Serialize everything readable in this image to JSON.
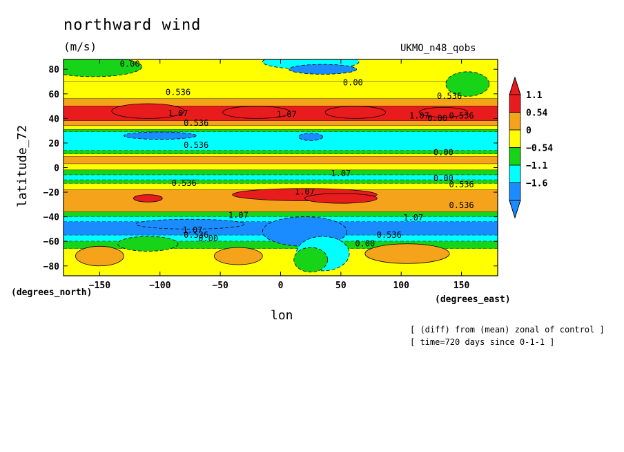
{
  "chart_data": {
    "type": "heatmap",
    "title": "northward wind",
    "units": "(m/s)",
    "model": "UKMO_n48_qobs",
    "xlabel": "lon",
    "ylabel": "latitude_72",
    "x_units": "(degrees_east)",
    "y_units": "(degrees_north)",
    "notes": [
      "[ (diff) from (mean) zonal of control ]",
      "[ time=720 days since 0-1-1 ]"
    ],
    "xlim": [
      -180,
      180
    ],
    "ylim": [
      -88,
      88
    ],
    "x_ticks": [
      -150,
      -100,
      -50,
      0,
      50,
      100,
      150
    ],
    "y_ticks": [
      80,
      60,
      40,
      20,
      0,
      -20,
      -40,
      -60,
      -80
    ],
    "colorbar": {
      "labels": [
        "1.1",
        "0.54",
        "0",
        "-0.54",
        "-1.1",
        "-1.6"
      ],
      "colors": [
        "#e81c1c",
        "#f5a31a",
        "#ffff00",
        "#18d418",
        "#00ffff",
        "#1a8cff"
      ]
    },
    "bands": [
      {
        "lat_top": 88,
        "lat_bottom": 70,
        "level": 2
      },
      {
        "lat_top": 70,
        "lat_bottom": 56,
        "level": 2
      },
      {
        "lat_top": 56,
        "lat_bottom": 50,
        "level": 1
      },
      {
        "lat_top": 50,
        "lat_bottom": 38,
        "level": 0
      },
      {
        "lat_top": 38,
        "lat_bottom": 34,
        "level": 1
      },
      {
        "lat_top": 34,
        "lat_bottom": 31,
        "level": 2
      },
      {
        "lat_top": 31,
        "lat_bottom": 29,
        "level": 3
      },
      {
        "lat_top": 29,
        "lat_bottom": 14,
        "level": 4
      },
      {
        "lat_top": 14,
        "lat_bottom": 11,
        "level": 3
      },
      {
        "lat_top": 11,
        "lat_bottom": 9,
        "level": 2
      },
      {
        "lat_top": 9,
        "lat_bottom": 3,
        "level": 1
      },
      {
        "lat_top": 3,
        "lat_bottom": -2,
        "level": 2
      },
      {
        "lat_top": -2,
        "lat_bottom": -6,
        "level": 3
      },
      {
        "lat_top": -6,
        "lat_bottom": -10,
        "level": 4
      },
      {
        "lat_top": -10,
        "lat_bottom": -13,
        "level": 3
      },
      {
        "lat_top": -13,
        "lat_bottom": -18,
        "level": 2
      },
      {
        "lat_top": -18,
        "lat_bottom": -36,
        "level": 1
      },
      {
        "lat_top": -36,
        "lat_bottom": -40,
        "level": 3
      },
      {
        "lat_top": -40,
        "lat_bottom": -44,
        "level": 4
      },
      {
        "lat_top": -44,
        "lat_bottom": -55,
        "level": 5
      },
      {
        "lat_top": -55,
        "lat_bottom": -60,
        "level": 4
      },
      {
        "lat_top": -60,
        "lat_bottom": -66,
        "level": 3
      },
      {
        "lat_top": -66,
        "lat_bottom": -88,
        "level": 2
      }
    ],
    "blobs": [
      {
        "lon": -110,
        "lat": 46,
        "rx": 30,
        "ry": 6,
        "level": 0
      },
      {
        "lon": -20,
        "lat": 45,
        "rx": 28,
        "ry": 5,
        "level": 0
      },
      {
        "lon": 62,
        "lat": 45,
        "rx": 25,
        "ry": 5,
        "level": 0
      },
      {
        "lon": 135,
        "lat": 45,
        "rx": 20,
        "ry": 4,
        "level": 0
      },
      {
        "lon": 25,
        "lat": 86,
        "rx": 40,
        "ry": 6,
        "level": 4
      },
      {
        "lon": 35,
        "lat": 80,
        "rx": 28,
        "ry": 4,
        "level": 5
      },
      {
        "lon": -155,
        "lat": 82,
        "rx": 40,
        "ry": 8,
        "level": 3
      },
      {
        "lon": 155,
        "lat": 68,
        "rx": 18,
        "ry": 10,
        "level": 3
      },
      {
        "lon": 25,
        "lat": 25,
        "rx": 10,
        "ry": 3,
        "level": 5
      },
      {
        "lon": -100,
        "lat": 26,
        "rx": 30,
        "ry": 3,
        "level": 5
      },
      {
        "lon": 20,
        "lat": -22,
        "rx": 60,
        "ry": 5,
        "level": 0
      },
      {
        "lon": 50,
        "lat": -25,
        "rx": 30,
        "ry": 4,
        "level": 0
      },
      {
        "lon": -110,
        "lat": -25,
        "rx": 12,
        "ry": 3,
        "level": 0
      },
      {
        "lon": -75,
        "lat": -46,
        "rx": 45,
        "ry": 4,
        "level": 5
      },
      {
        "lon": 20,
        "lat": -52,
        "rx": 35,
        "ry": 12,
        "level": 5
      },
      {
        "lon": 35,
        "lat": -70,
        "rx": 22,
        "ry": 14,
        "level": 4
      },
      {
        "lon": 25,
        "lat": -75,
        "rx": 14,
        "ry": 10,
        "level": 3
      },
      {
        "lon": -150,
        "lat": -72,
        "rx": 20,
        "ry": 8,
        "level": 1
      },
      {
        "lon": -35,
        "lat": -72,
        "rx": 20,
        "ry": 7,
        "level": 1
      },
      {
        "lon": 105,
        "lat": -70,
        "rx": 35,
        "ry": 8,
        "level": 1
      },
      {
        "lon": -110,
        "lat": -62,
        "rx": 25,
        "ry": 6,
        "level": 3
      }
    ],
    "contour_labels": [
      {
        "text": "0.00",
        "lon": -125,
        "lat": 82
      },
      {
        "text": "0.00",
        "lon": 60,
        "lat": 67
      },
      {
        "text": "0.536",
        "lon": -85,
        "lat": 59
      },
      {
        "text": "0.536",
        "lon": 140,
        "lat": 56
      },
      {
        "text": "1.07",
        "lon": 5,
        "lat": 41
      },
      {
        "text": "1.07",
        "lon": 115,
        "lat": 40
      },
      {
        "text": "1.07",
        "lon": -85,
        "lat": 42
      },
      {
        "text": "0.536",
        "lon": 150,
        "lat": 40
      },
      {
        "text": "0.00",
        "lon": 130,
        "lat": 38
      },
      {
        "text": "0.536",
        "lon": -70,
        "lat": 34
      },
      {
        "text": "0.536",
        "lon": -70,
        "lat": 16
      },
      {
        "text": "0.00",
        "lon": 135,
        "lat": 10
      },
      {
        "text": "1.07",
        "lon": 50,
        "lat": -7
      },
      {
        "text": "0.00",
        "lon": 135,
        "lat": -11
      },
      {
        "text": "0.536",
        "lon": -80,
        "lat": -15
      },
      {
        "text": "0.536",
        "lon": 150,
        "lat": -16
      },
      {
        "text": "1.07",
        "lon": 20,
        "lat": -22
      },
      {
        "text": "0.536",
        "lon": 150,
        "lat": -33
      },
      {
        "text": "1.07",
        "lon": -35,
        "lat": -41
      },
      {
        "text": "1.07",
        "lon": 110,
        "lat": -43
      },
      {
        "text": "1.07",
        "lon": -73,
        "lat": -53
      },
      {
        "text": "0.536",
        "lon": 90,
        "lat": -57
      },
      {
        "text": "0.536",
        "lon": -70,
        "lat": -57
      },
      {
        "text": "0.00",
        "lon": 70,
        "lat": -64
      },
      {
        "text": "0.00",
        "lon": -60,
        "lat": -60
      }
    ]
  }
}
